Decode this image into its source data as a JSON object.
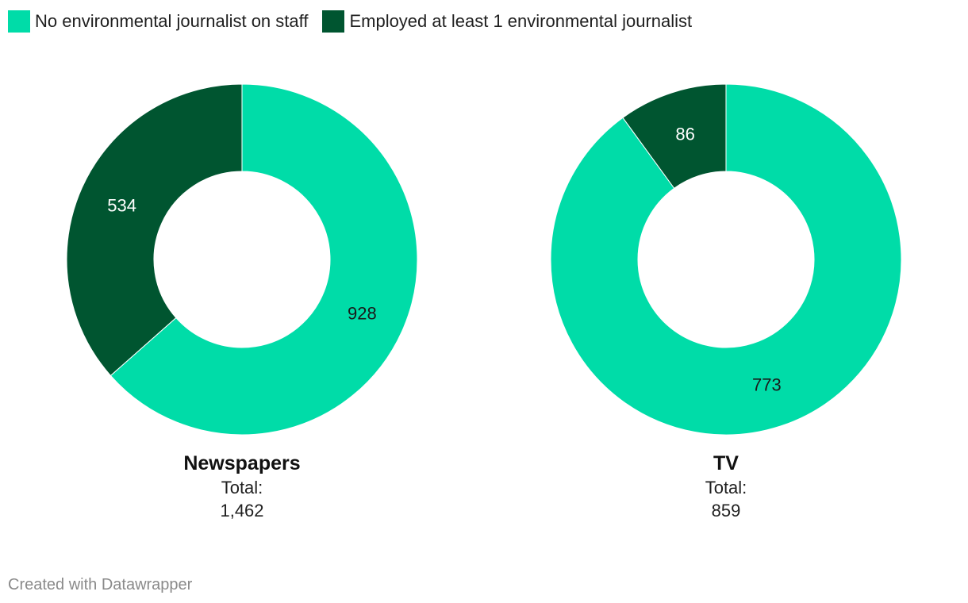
{
  "colors": {
    "no_env_journalist": "#00dca8",
    "employed_env_journalist": "#005530"
  },
  "legend": [
    {
      "label": "No environmental journalist on staff",
      "color": "#00dca8"
    },
    {
      "label": "Employed at least 1 environmental journalist",
      "color": "#005530"
    }
  ],
  "chart_data": [
    {
      "type": "pie",
      "subtype": "donut",
      "title": "Newspapers",
      "total_label": "Total:",
      "total_value": "1,462",
      "slices": [
        {
          "label": "No environmental journalist on staff",
          "value": 928,
          "display": "928",
          "color": "#00dca8"
        },
        {
          "label": "Employed at least 1 environmental journalist",
          "value": 534,
          "display": "534",
          "color": "#005530"
        }
      ]
    },
    {
      "type": "pie",
      "subtype": "donut",
      "title": "TV",
      "total_label": "Total:",
      "total_value": "859",
      "slices": [
        {
          "label": "No environmental journalist on staff",
          "value": 773,
          "display": "773",
          "color": "#00dca8"
        },
        {
          "label": "Employed at least 1 environmental journalist",
          "value": 86,
          "display": "86",
          "color": "#005530"
        }
      ]
    }
  ],
  "footer": {
    "credit": "Created with Datawrapper"
  }
}
